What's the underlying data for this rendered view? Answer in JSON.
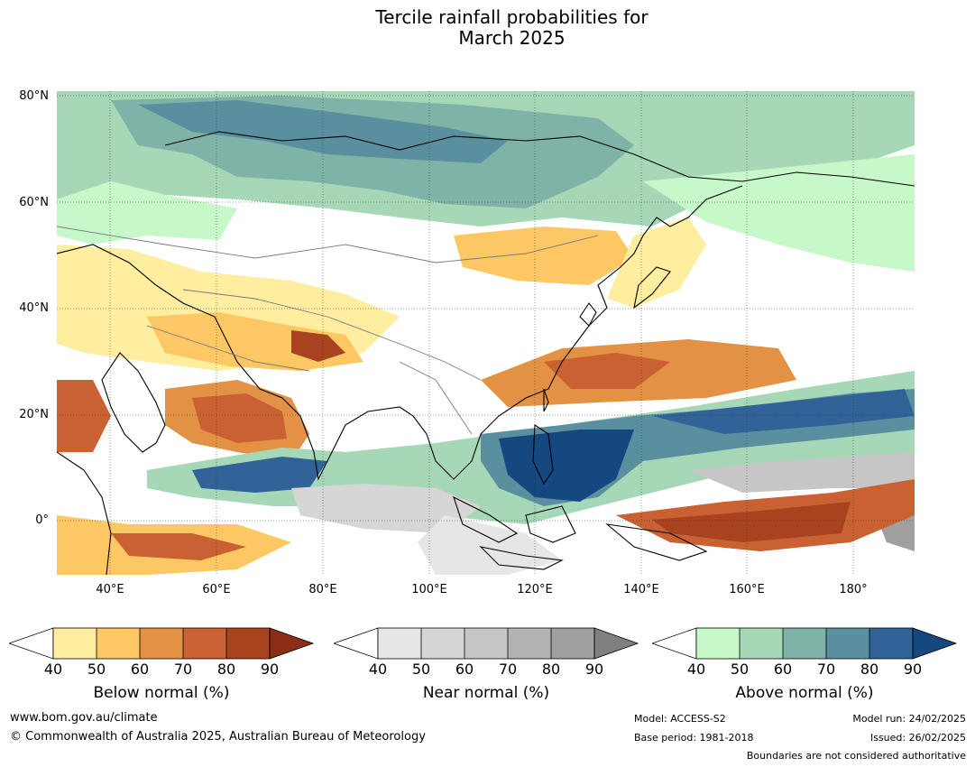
{
  "title_line1": "Tercile rainfall probabilities for",
  "title_line2": "March 2025",
  "map": {
    "lat_labels": [
      "80°N",
      "60°N",
      "40°N",
      "20°N",
      "0°"
    ],
    "lon_labels": [
      "40°E",
      "60°E",
      "80°E",
      "100°E",
      "120°E",
      "140°E",
      "160°E",
      "180°"
    ],
    "lat_range": [
      -10,
      80
    ],
    "lon_range": [
      30,
      191
    ],
    "gridlines": true
  },
  "colorbars": [
    {
      "title": "Below normal (%)",
      "ticks": [
        "40",
        "50",
        "60",
        "70",
        "80",
        "90"
      ],
      "colors": [
        "#ffeda0",
        "#fdc863",
        "#e39144",
        "#c96132",
        "#a9431f",
        "#8b2e15"
      ]
    },
    {
      "title": "Near normal (%)",
      "ticks": [
        "40",
        "50",
        "60",
        "70",
        "80",
        "90"
      ],
      "colors": [
        "#e6e6e6",
        "#d6d6d6",
        "#c6c6c6",
        "#b3b3b3",
        "#a0a0a0",
        "#808080"
      ]
    },
    {
      "title": "Above normal (%)",
      "ticks": [
        "40",
        "50",
        "60",
        "70",
        "80",
        "90"
      ],
      "colors": [
        "#c7f8c9",
        "#a6d8b8",
        "#7fb3a7",
        "#5a8f9f",
        "#326398",
        "#14487f"
      ]
    }
  ],
  "footer": {
    "website": "www.bom.gov.au/climate",
    "copyright": "© Commonwealth of Australia 2025, Australian Bureau of Meteorology",
    "model": "Model: ACCESS-S2",
    "base_period": "Base period: 1981-2018",
    "model_run": "Model run: 24/02/2025",
    "issued": "Issued: 26/02/2025",
    "disclaimer": "Boundaries are not considered authoritative"
  }
}
